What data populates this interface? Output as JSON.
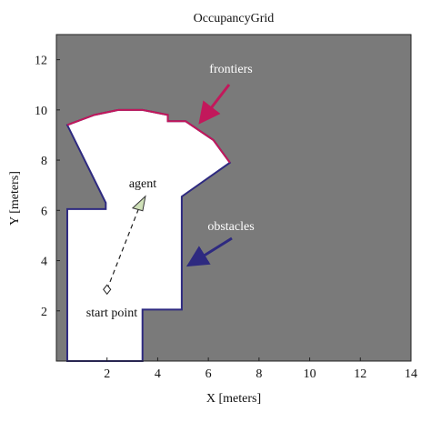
{
  "chart_data": {
    "type": "occupancy-grid",
    "title": "OccupancyGrid",
    "x_label": "X [meters]",
    "y_label": "Y [meters]",
    "xlim": [
      0,
      14
    ],
    "ylim": [
      0,
      13
    ],
    "xticks": [
      2,
      4,
      6,
      8,
      10,
      12,
      14
    ],
    "yticks": [
      2,
      4,
      6,
      8,
      10,
      12
    ],
    "occupied_color": "#7a7a7a",
    "free_color": "#ffffff",
    "obstacle_color": "#2e2a80",
    "frontier_color": "#c2185b",
    "free_region": {
      "x": [
        0.43,
        3.4,
        3.4,
        4.95,
        4.95,
        6.85,
        6.2,
        5.1,
        5.1,
        4.4,
        4.4,
        3.4,
        2.45,
        1.5,
        0.43,
        1.95,
        1.95,
        0.43
      ],
      "y": [
        0,
        0,
        2.05,
        2.05,
        6.55,
        7.9,
        8.8,
        9.55,
        9.55,
        9.55,
        9.8,
        10.0,
        10.0,
        9.8,
        9.4,
        6.3,
        6.05,
        6.05
      ]
    },
    "frontier": {
      "x": [
        0.43,
        1.5,
        2.45,
        3.4,
        4.4,
        4.4,
        5.1,
        6.2,
        6.85
      ],
      "y": [
        9.4,
        9.8,
        10.0,
        10.0,
        9.8,
        9.55,
        9.55,
        8.8,
        7.9
      ]
    },
    "start_point": {
      "x": 2.0,
      "y": 2.85
    },
    "agent": {
      "x": 3.3,
      "y": 6.2
    },
    "annotations": {
      "frontiers": "frontiers",
      "agent": "agent",
      "obstacles": "obstacles",
      "start_point": "start point"
    }
  }
}
